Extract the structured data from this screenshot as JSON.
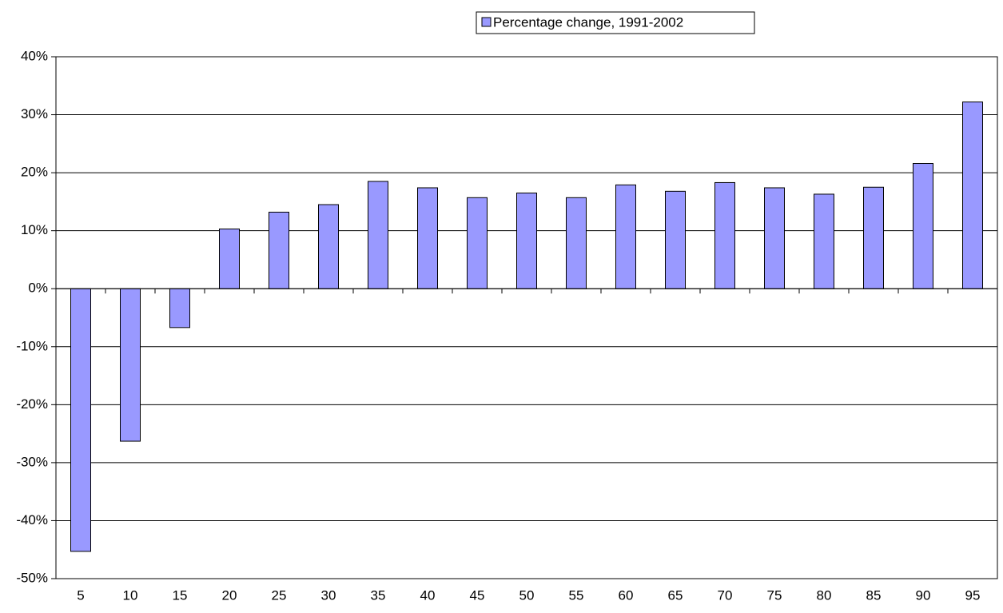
{
  "chart_data": {
    "type": "bar",
    "categories": [
      "5",
      "10",
      "15",
      "20",
      "25",
      "30",
      "35",
      "40",
      "45",
      "50",
      "55",
      "60",
      "65",
      "70",
      "75",
      "80",
      "85",
      "90",
      "95"
    ],
    "series": [
      {
        "name": "Percentage change, 1991-2002",
        "color": "#9999ff",
        "values": [
          -45.3,
          -26.3,
          -6.7,
          10.3,
          13.2,
          14.5,
          18.5,
          17.4,
          15.7,
          16.5,
          15.7,
          17.9,
          16.8,
          18.3,
          17.4,
          16.3,
          17.5,
          21.6,
          32.2
        ]
      }
    ],
    "ylim": [
      -50,
      40
    ],
    "yticks": [
      {
        "value": -50,
        "label": "-50%"
      },
      {
        "value": -40,
        "label": "-40%"
      },
      {
        "value": -30,
        "label": "-30%"
      },
      {
        "value": -20,
        "label": "-20%"
      },
      {
        "value": -10,
        "label": "-10%"
      },
      {
        "value": 0,
        "label": "0%"
      },
      {
        "value": 10,
        "label": "10%"
      },
      {
        "value": 20,
        "label": "20%"
      },
      {
        "value": 30,
        "label": "30%"
      },
      {
        "value": 40,
        "label": "40%"
      }
    ],
    "grid": true,
    "legend": "top"
  }
}
